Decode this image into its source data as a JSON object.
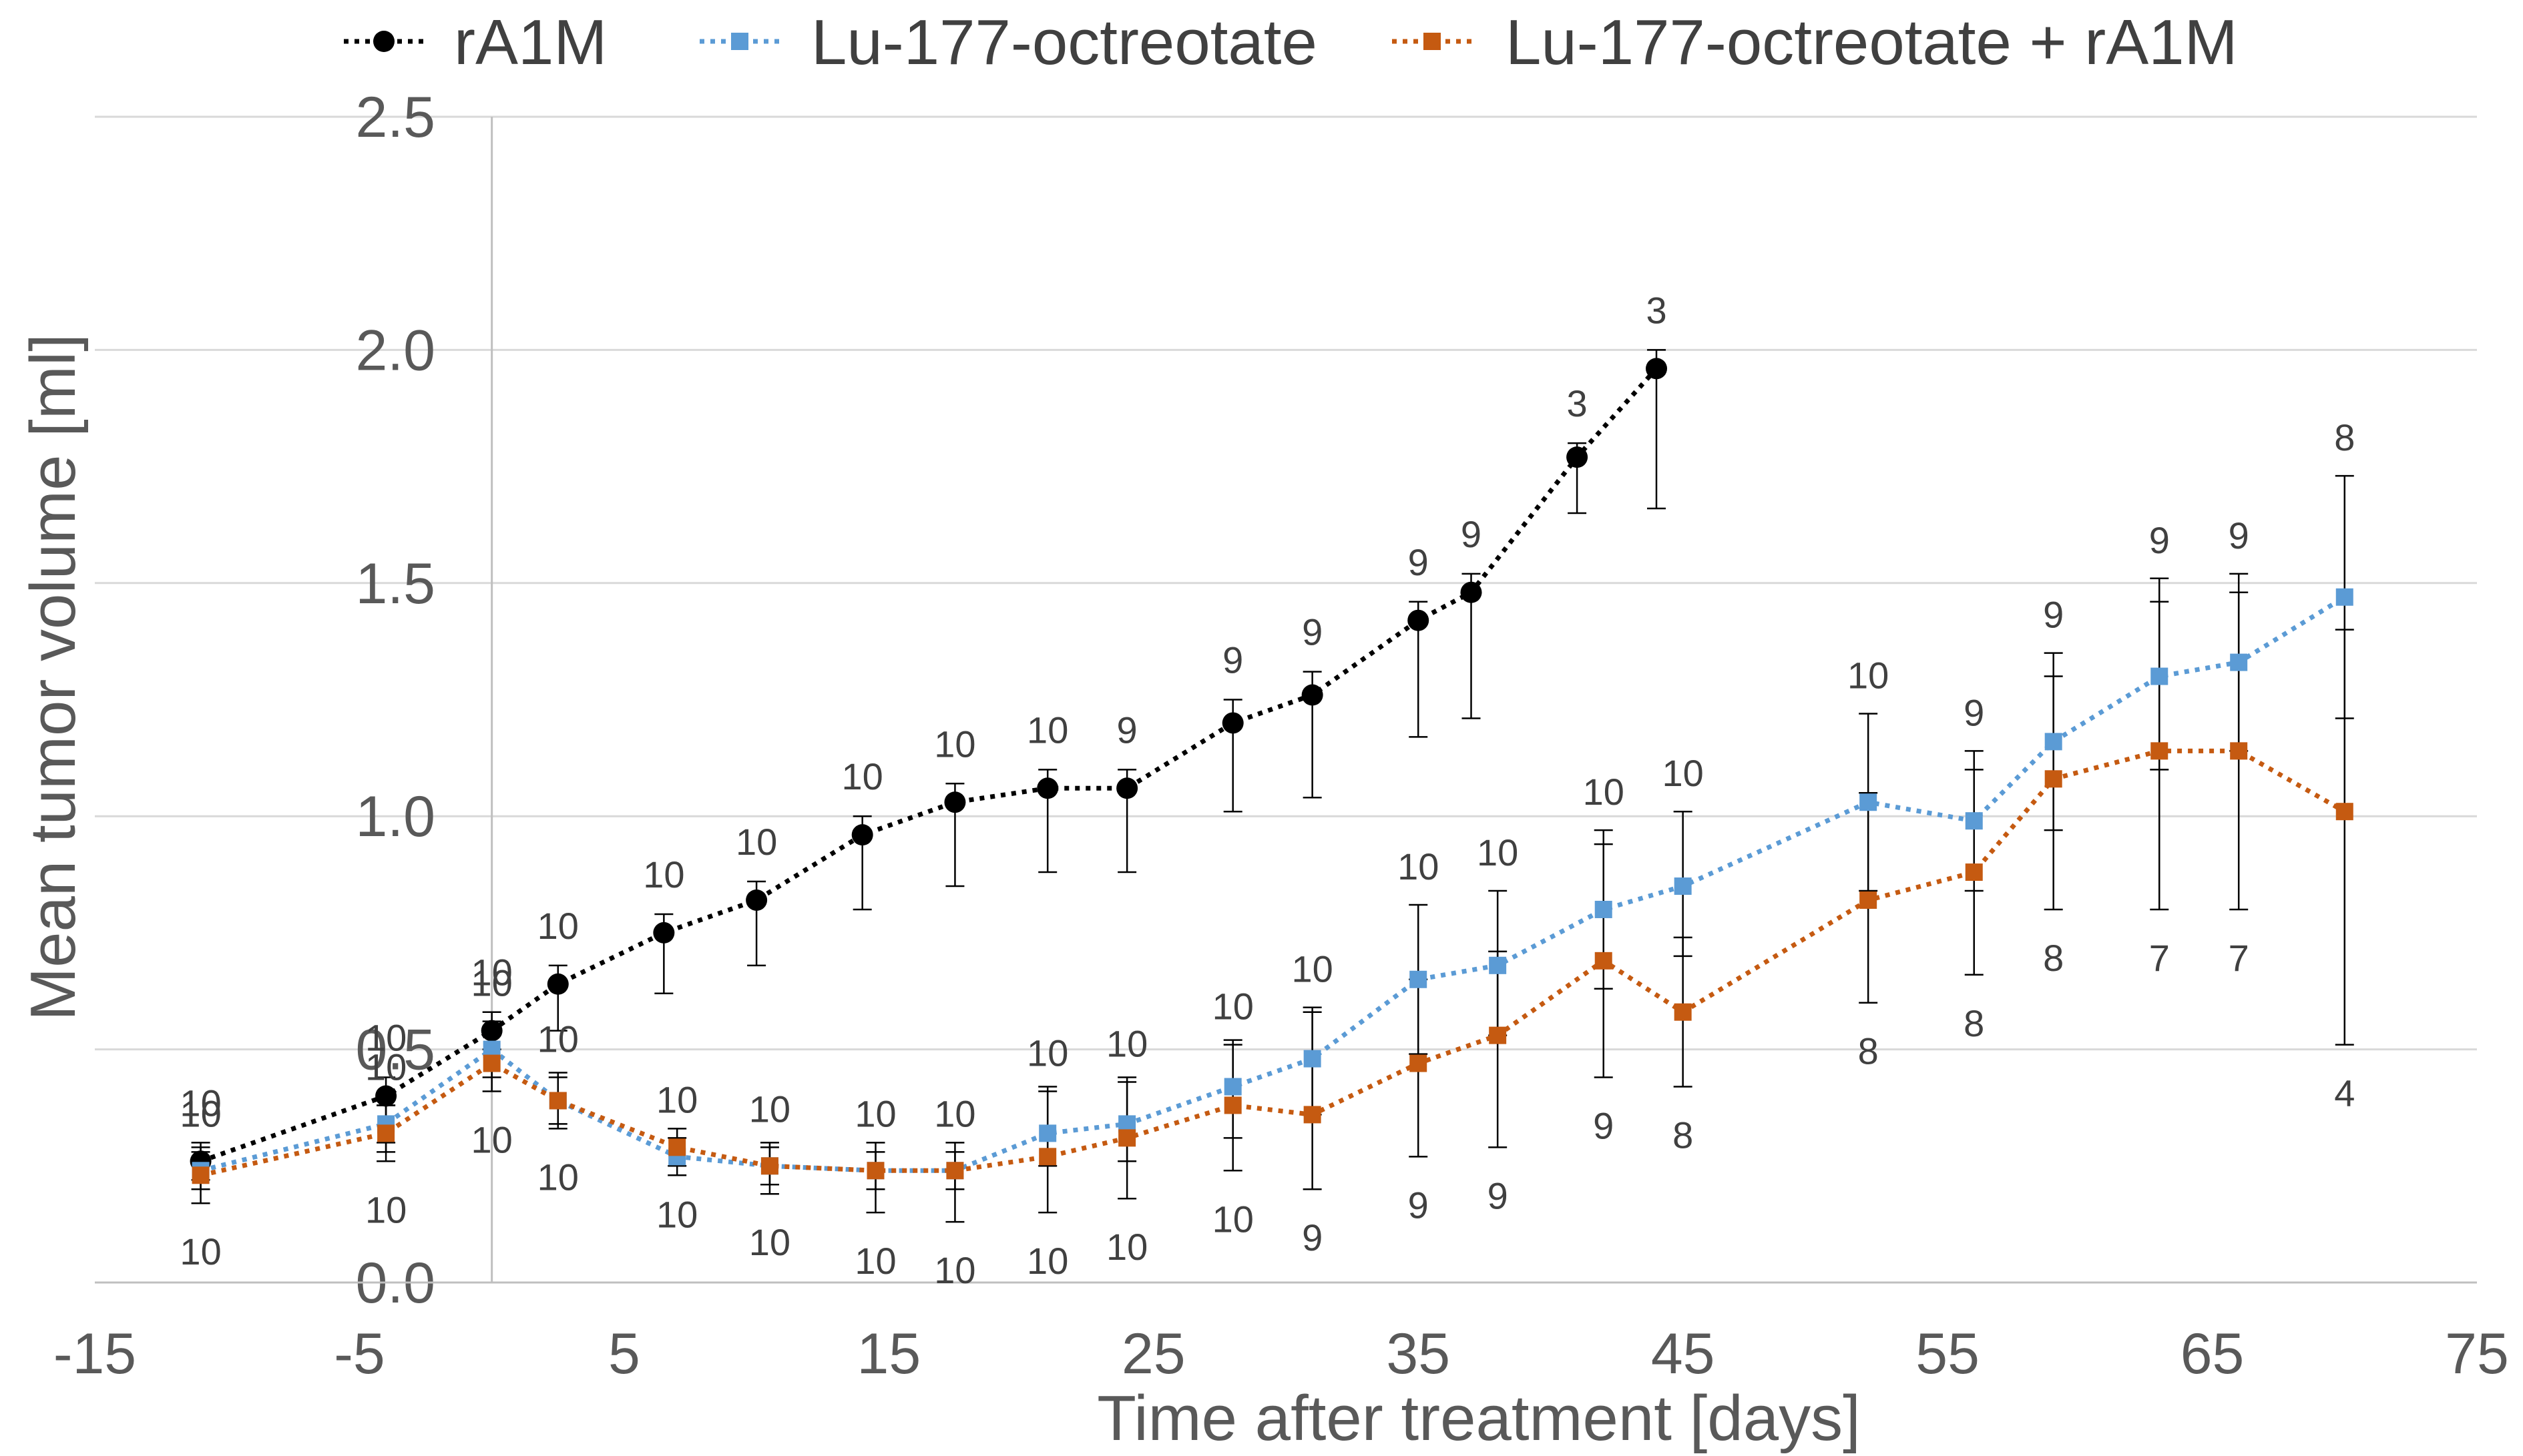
{
  "chart_data": {
    "type": "line",
    "xlabel": "Time after treatment [days]",
    "ylabel": "Mean tumor volume [ml]",
    "xlim": [
      -15,
      75
    ],
    "ylim": [
      0,
      2.5
    ],
    "xticks": [
      "-15",
      "-5",
      "5",
      "15",
      "25",
      "35",
      "45",
      "55",
      "65",
      "75"
    ],
    "yticks": [
      "0.0",
      "0.5",
      "1.0",
      "1.5",
      "2.0",
      "2.5"
    ],
    "grid": "horizontal",
    "legend": "top",
    "series": [
      {
        "name": "rA1M",
        "color": "#000000",
        "marker": "circle",
        "points": [
          {
            "x": -11,
            "y": 0.26,
            "err": [
              0.22,
              0.3
            ],
            "n": "10"
          },
          {
            "x": -4,
            "y": 0.4,
            "err": [
              0.28,
              0.44
            ],
            "n": "10"
          },
          {
            "x": 0,
            "y": 0.54,
            "err": [
              0.5,
              0.58
            ],
            "n": "10"
          },
          {
            "x": 2.5,
            "y": 0.64,
            "err": [
              0.54,
              0.68
            ],
            "n": "10"
          },
          {
            "x": 6.5,
            "y": 0.75,
            "err": [
              0.62,
              0.79
            ],
            "n": "10"
          },
          {
            "x": 10,
            "y": 0.82,
            "err": [
              0.68,
              0.86
            ],
            "n": "10"
          },
          {
            "x": 14,
            "y": 0.96,
            "err": [
              0.8,
              1.0
            ],
            "n": "10"
          },
          {
            "x": 17.5,
            "y": 1.03,
            "err": [
              0.85,
              1.07
            ],
            "n": "10"
          },
          {
            "x": 21,
            "y": 1.06,
            "err": [
              0.88,
              1.1
            ],
            "n": "10"
          },
          {
            "x": 24,
            "y": 1.06,
            "err": [
              0.88,
              1.1
            ],
            "n": "9"
          },
          {
            "x": 28,
            "y": 1.2,
            "err": [
              1.01,
              1.25
            ],
            "n": "9"
          },
          {
            "x": 31,
            "y": 1.26,
            "err": [
              1.04,
              1.31
            ],
            "n": "9"
          },
          {
            "x": 35,
            "y": 1.42,
            "err": [
              1.17,
              1.46
            ],
            "n": "9"
          },
          {
            "x": 37,
            "y": 1.48,
            "err": [
              1.21,
              1.52
            ],
            "n": "9"
          },
          {
            "x": 41,
            "y": 1.77,
            "err": [
              1.65,
              1.8
            ],
            "n": "3"
          },
          {
            "x": 44,
            "y": 1.96,
            "err": [
              1.66,
              2.0
            ],
            "n": "3"
          }
        ]
      },
      {
        "name": "Lu-177-octreotate",
        "color": "#5b9bd5",
        "marker": "square",
        "points": [
          {
            "x": -11,
            "y": 0.24,
            "err": [
              0.2,
              0.28
            ],
            "n": "10"
          },
          {
            "x": -4,
            "y": 0.34,
            "err": [
              0.3,
              0.38
            ],
            "n": "10"
          },
          {
            "x": 0,
            "y": 0.5,
            "err": [
              0.44,
              0.56
            ],
            "n": "10"
          },
          {
            "x": 2.5,
            "y": 0.39,
            "err": [
              0.34,
              0.44
            ],
            "n": "10"
          },
          {
            "x": 7,
            "y": 0.27,
            "err": [
              0.23,
              0.31
            ],
            "n": "10"
          },
          {
            "x": 10.5,
            "y": 0.25,
            "err": [
              0.21,
              0.29
            ],
            "n": "10"
          },
          {
            "x": 14.5,
            "y": 0.24,
            "err": [
              0.2,
              0.28
            ],
            "n": "10"
          },
          {
            "x": 17.5,
            "y": 0.24,
            "err": [
              0.2,
              0.28
            ],
            "n": "10"
          },
          {
            "x": 21,
            "y": 0.32,
            "err": [
              0.25,
              0.41
            ],
            "n": "10"
          },
          {
            "x": 24,
            "y": 0.34,
            "err": [
              0.26,
              0.43
            ],
            "n": "10"
          },
          {
            "x": 28,
            "y": 0.42,
            "err": [
              0.31,
              0.51
            ],
            "n": "10"
          },
          {
            "x": 31,
            "y": 0.48,
            "err": [
              0.36,
              0.59
            ],
            "n": "10"
          },
          {
            "x": 35,
            "y": 0.65,
            "err": [
              0.49,
              0.81
            ],
            "n": "10"
          },
          {
            "x": 38,
            "y": 0.68,
            "err": [
              0.53,
              0.84
            ],
            "n": "10"
          },
          {
            "x": 42,
            "y": 0.8,
            "err": [
              0.63,
              0.97
            ],
            "n": "10"
          },
          {
            "x": 45,
            "y": 0.85,
            "err": [
              0.7,
              1.01
            ],
            "n": "10"
          },
          {
            "x": 52,
            "y": 1.03,
            "err": [
              0.84,
              1.22
            ],
            "n": "10"
          },
          {
            "x": 56,
            "y": 0.99,
            "err": [
              0.84,
              1.14
            ],
            "n": "9"
          },
          {
            "x": 59,
            "y": 1.16,
            "err": [
              0.97,
              1.35
            ],
            "n": "9"
          },
          {
            "x": 63,
            "y": 1.3,
            "err": [
              1.1,
              1.51
            ],
            "n": "9"
          },
          {
            "x": 66,
            "y": 1.33,
            "err": [
              1.14,
              1.52
            ],
            "n": "9"
          },
          {
            "x": 70,
            "y": 1.47,
            "err": [
              1.21,
              1.73
            ],
            "n": "8"
          }
        ]
      },
      {
        "name": "Lu-177-octreotate + rA1M",
        "color": "#c55a11",
        "marker": "square",
        "points": [
          {
            "x": -11,
            "y": 0.23,
            "err": [
              0.17,
              0.29
            ],
            "n": "10"
          },
          {
            "x": -4,
            "y": 0.32,
            "err": [
              0.26,
              0.38
            ],
            "n": "10"
          },
          {
            "x": 0,
            "y": 0.47,
            "err": [
              0.41,
              0.53
            ],
            "n": "10"
          },
          {
            "x": 2.5,
            "y": 0.39,
            "err": [
              0.33,
              0.45
            ],
            "n": "10"
          },
          {
            "x": 7,
            "y": 0.29,
            "err": [
              0.25,
              0.33
            ],
            "n": "10"
          },
          {
            "x": 10.5,
            "y": 0.25,
            "err": [
              0.19,
              0.3
            ],
            "n": "10"
          },
          {
            "x": 14.5,
            "y": 0.24,
            "err": [
              0.15,
              0.3
            ],
            "n": "10"
          },
          {
            "x": 17.5,
            "y": 0.24,
            "err": [
              0.13,
              0.3
            ],
            "n": "10"
          },
          {
            "x": 21,
            "y": 0.27,
            "err": [
              0.15,
              0.42
            ],
            "n": "10"
          },
          {
            "x": 24,
            "y": 0.31,
            "err": [
              0.18,
              0.44
            ],
            "n": "10"
          },
          {
            "x": 28,
            "y": 0.38,
            "err": [
              0.24,
              0.52
            ],
            "n": "10"
          },
          {
            "x": 31,
            "y": 0.36,
            "err": [
              0.2,
              0.58
            ],
            "n": "9"
          },
          {
            "x": 35,
            "y": 0.47,
            "err": [
              0.27,
              0.65
            ],
            "n": "9"
          },
          {
            "x": 38,
            "y": 0.53,
            "err": [
              0.29,
              0.71
            ],
            "n": "9"
          },
          {
            "x": 42,
            "y": 0.69,
            "err": [
              0.44,
              0.94
            ],
            "n": "9"
          },
          {
            "x": 45,
            "y": 0.58,
            "err": [
              0.42,
              0.74
            ],
            "n": "8"
          },
          {
            "x": 52,
            "y": 0.82,
            "err": [
              0.6,
              1.05
            ],
            "n": "8"
          },
          {
            "x": 56,
            "y": 0.88,
            "err": [
              0.66,
              1.1
            ],
            "n": "8"
          },
          {
            "x": 59,
            "y": 1.08,
            "err": [
              0.8,
              1.3
            ],
            "n": "8"
          },
          {
            "x": 63,
            "y": 1.14,
            "err": [
              0.8,
              1.46
            ],
            "n": "7"
          },
          {
            "x": 66,
            "y": 1.14,
            "err": [
              0.8,
              1.48
            ],
            "n": "7"
          },
          {
            "x": 70,
            "y": 1.01,
            "err": [
              0.51,
              1.4
            ],
            "n": "4"
          }
        ]
      }
    ]
  }
}
